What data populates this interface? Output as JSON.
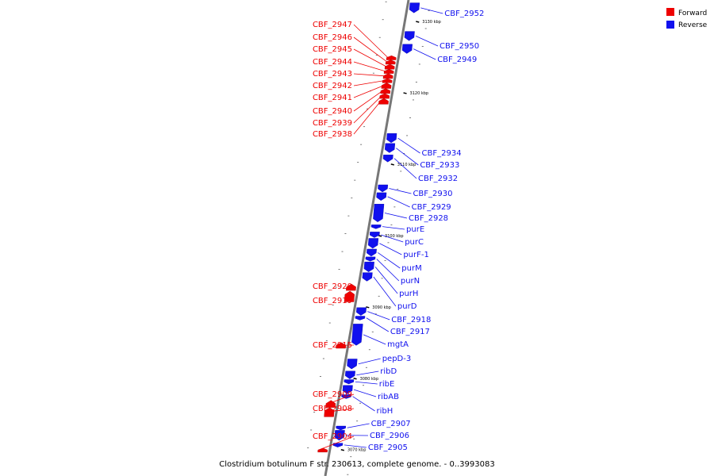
{
  "caption": "Clostridium botulinum F str. 230613, complete genome. - 0..3993083",
  "legend": {
    "forward": {
      "label": "Forward",
      "color": "#ee0000"
    },
    "reverse": {
      "label": "Reverse",
      "color": "#1010ee"
    }
  },
  "colors": {
    "forward": "#ee0000",
    "reverse": "#1010ee",
    "backbone": "#777777"
  },
  "genome_range_kbp": [
    3066,
    3133
  ],
  "ticks_kbp": [
    {
      "kbp": 3130,
      "label": "3130 kbp"
    },
    {
      "kbp": 3120,
      "label": "3120 kbp"
    },
    {
      "kbp": 3110,
      "label": "3110 kbp"
    },
    {
      "kbp": 3100,
      "label": "3100 kbp"
    },
    {
      "kbp": 3090,
      "label": "3090 kbp"
    },
    {
      "kbp": 3080,
      "label": "3080 kbp"
    },
    {
      "kbp": 3070,
      "label": "3070 kbp"
    }
  ],
  "genes": [
    {
      "name": "CBF_2952",
      "strand": "reverse",
      "start_kbp": 3131.2,
      "end_kbp": 3132.6
    },
    {
      "name": "CBF_2950",
      "strand": "reverse",
      "start_kbp": 3127.3,
      "end_kbp": 3128.6
    },
    {
      "name": "CBF_2949",
      "strand": "reverse",
      "start_kbp": 3125.5,
      "end_kbp": 3126.8
    },
    {
      "name": "CBF_2947",
      "strand": "forward",
      "start_kbp": 3124.6,
      "end_kbp": 3125.2
    },
    {
      "name": "CBF_2946",
      "strand": "forward",
      "start_kbp": 3124.0,
      "end_kbp": 3124.6
    },
    {
      "name": "CBF_2945",
      "strand": "forward",
      "start_kbp": 3123.3,
      "end_kbp": 3124.0
    },
    {
      "name": "CBF_2944",
      "strand": "forward",
      "start_kbp": 3122.7,
      "end_kbp": 3123.3
    },
    {
      "name": "CBF_2943",
      "strand": "forward",
      "start_kbp": 3122.0,
      "end_kbp": 3122.7
    },
    {
      "name": "CBF_2942",
      "strand": "forward",
      "start_kbp": 3121.4,
      "end_kbp": 3122.0
    },
    {
      "name": "CBF_2941",
      "strand": "forward",
      "start_kbp": 3120.6,
      "end_kbp": 3121.4
    },
    {
      "name": "CBF_2940",
      "strand": "forward",
      "start_kbp": 3119.9,
      "end_kbp": 3120.6
    },
    {
      "name": "CBF_2939",
      "strand": "forward",
      "start_kbp": 3119.2,
      "end_kbp": 3119.9
    },
    {
      "name": "CBF_2938",
      "strand": "forward",
      "start_kbp": 3118.4,
      "end_kbp": 3119.2
    },
    {
      "name": "CBF_2934",
      "strand": "reverse",
      "start_kbp": 3113.0,
      "end_kbp": 3114.3
    },
    {
      "name": "CBF_2933",
      "strand": "reverse",
      "start_kbp": 3111.6,
      "end_kbp": 3112.9
    },
    {
      "name": "CBF_2932",
      "strand": "reverse",
      "start_kbp": 3110.3,
      "end_kbp": 3111.3
    },
    {
      "name": "CBF_2930",
      "strand": "reverse",
      "start_kbp": 3106.1,
      "end_kbp": 3107.1
    },
    {
      "name": "CBF_2929",
      "strand": "reverse",
      "start_kbp": 3104.9,
      "end_kbp": 3106.0
    },
    {
      "name": "CBF_2928",
      "strand": "reverse",
      "start_kbp": 3101.9,
      "end_kbp": 3104.4
    },
    {
      "name": "purE",
      "strand": "reverse",
      "start_kbp": 3101.0,
      "end_kbp": 3101.5
    },
    {
      "name": "purC",
      "strand": "reverse",
      "start_kbp": 3099.7,
      "end_kbp": 3100.5
    },
    {
      "name": "purF-1",
      "strand": "reverse",
      "start_kbp": 3098.2,
      "end_kbp": 3099.6
    },
    {
      "name": "purM",
      "strand": "reverse",
      "start_kbp": 3097.1,
      "end_kbp": 3098.1
    },
    {
      "name": "purN",
      "strand": "reverse",
      "start_kbp": 3096.4,
      "end_kbp": 3097.0
    },
    {
      "name": "purH",
      "strand": "reverse",
      "start_kbp": 3094.9,
      "end_kbp": 3096.3
    },
    {
      "name": "purD",
      "strand": "reverse",
      "start_kbp": 3093.6,
      "end_kbp": 3094.8
    },
    {
      "name": "CBF_2920",
      "strand": "forward",
      "start_kbp": 3092.3,
      "end_kbp": 3093.2
    },
    {
      "name": "CBF_2919",
      "strand": "forward",
      "start_kbp": 3090.7,
      "end_kbp": 3092.2
    },
    {
      "name": "CBF_2918",
      "strand": "reverse",
      "start_kbp": 3088.8,
      "end_kbp": 3089.9
    },
    {
      "name": "CBF_2917",
      "strand": "reverse",
      "start_kbp": 3088.2,
      "end_kbp": 3088.7
    },
    {
      "name": "mgtA",
      "strand": "reverse",
      "start_kbp": 3084.6,
      "end_kbp": 3087.6
    },
    {
      "name": "CBF_2915",
      "strand": "forward",
      "start_kbp": 3084.2,
      "end_kbp": 3085.0
    },
    {
      "name": "pepD-3",
      "strand": "reverse",
      "start_kbp": 3081.3,
      "end_kbp": 3082.7
    },
    {
      "name": "ribD",
      "strand": "reverse",
      "start_kbp": 3079.9,
      "end_kbp": 3081.0
    },
    {
      "name": "ribE",
      "strand": "reverse",
      "start_kbp": 3079.2,
      "end_kbp": 3079.8
    },
    {
      "name": "ribAB",
      "strand": "reverse",
      "start_kbp": 3077.8,
      "end_kbp": 3079.0
    },
    {
      "name": "ribH",
      "strand": "reverse",
      "start_kbp": 3077.2,
      "end_kbp": 3077.7
    },
    {
      "name": "CBF_2909",
      "strand": "forward",
      "start_kbp": 3075.9,
      "end_kbp": 3076.9
    },
    {
      "name": "CBF_2908",
      "strand": "forward",
      "start_kbp": 3074.6,
      "end_kbp": 3075.9
    },
    {
      "name": "CBF_2907",
      "strand": "reverse",
      "start_kbp": 3072.8,
      "end_kbp": 3073.3
    },
    {
      "name": "CBF_2906",
      "strand": "reverse",
      "start_kbp": 3071.3,
      "end_kbp": 3072.7
    },
    {
      "name": "CBF_2905",
      "strand": "reverse",
      "start_kbp": 3070.4,
      "end_kbp": 3070.9
    },
    {
      "name": "CBF_2904",
      "strand": "forward",
      "start_kbp": 3069.8,
      "end_kbp": 3070.2
    }
  ]
}
